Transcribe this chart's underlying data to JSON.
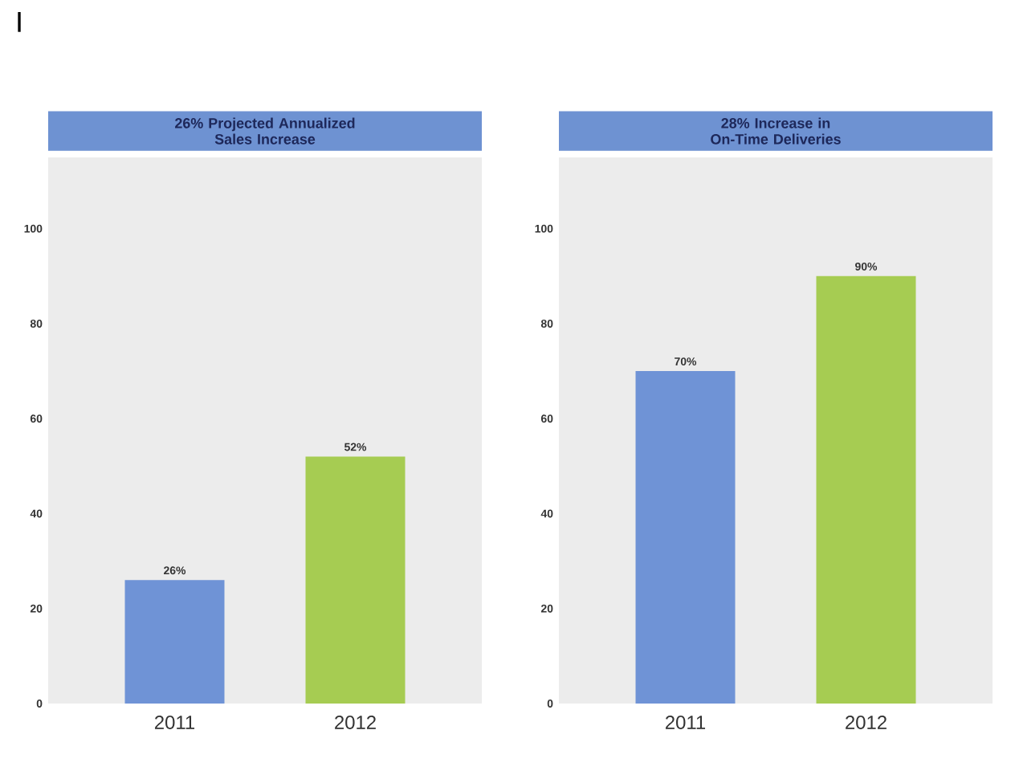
{
  "chart_data": [
    {
      "type": "bar",
      "title": "26% Projected Annualized Sales Increase",
      "categories": [
        "2011",
        "2012"
      ],
      "values": [
        26,
        52
      ],
      "colors": [
        "#6f93d6",
        "#a6cc52"
      ],
      "value_labels": [
        "26%",
        "52%"
      ],
      "ylim": [
        0,
        115
      ],
      "yticks": [
        0,
        20,
        40,
        60,
        80,
        100
      ],
      "annotations": [
        "I"
      ]
    },
    {
      "type": "bar",
      "title": "28% Increase in On-Time Deliveries",
      "categories": [
        "2011",
        "2012"
      ],
      "values": [
        70,
        90
      ],
      "colors": [
        "#6f93d6",
        "#a6cc52"
      ],
      "value_labels": [
        "70%",
        "90%"
      ],
      "ylim": [
        0,
        115
      ],
      "yticks": [
        0,
        20,
        40,
        60,
        80,
        100
      ]
    }
  ]
}
